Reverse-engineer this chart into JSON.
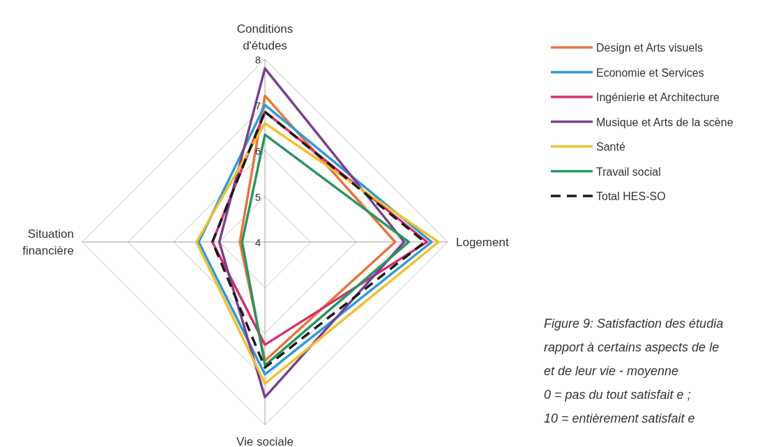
{
  "chart_data": {
    "type": "radar",
    "categories": [
      "Conditions d'études",
      "Logement",
      "Vie sociale",
      "Situation financière"
    ],
    "series": [
      {
        "name": "Design et Arts visuels",
        "color": "#e8743b",
        "values": [
          7.2,
          6.85,
          6.6,
          4.55
        ]
      },
      {
        "name": "Economie et Services",
        "color": "#2e9bd6",
        "values": [
          7.0,
          7.65,
          6.9,
          5.45
        ]
      },
      {
        "name": "Ingénierie et Architecture",
        "color": "#d62f6e",
        "values": [
          6.85,
          7.55,
          6.25,
          5.15
        ]
      },
      {
        "name": "Musique et Arts de la scène",
        "color": "#7b3f8c",
        "values": [
          7.8,
          7.05,
          7.4,
          5.0
        ]
      },
      {
        "name": "Santé",
        "color": "#f0c030",
        "values": [
          6.6,
          7.8,
          7.1,
          5.5
        ]
      },
      {
        "name": "Travail social",
        "color": "#2a9461",
        "values": [
          6.35,
          7.15,
          6.7,
          4.5
        ]
      },
      {
        "name": "Total HES-SO",
        "color": "#1a1a1a",
        "values": [
          6.85,
          7.5,
          6.75,
          5.15
        ],
        "line_style": "dashed"
      }
    ],
    "ylim": [
      4,
      8
    ],
    "yticks": [
      4,
      5,
      6,
      7,
      8
    ],
    "grid": true,
    "legend": "right",
    "marker": "none",
    "annotations": [
      "Figure 9: Satisfaction des étudia",
      "rapport à certains aspects de le",
      "et de leur vie - moyenne",
      "0 = pas du tout satisfait e ;",
      "10 = entièrement satisfait e"
    ]
  }
}
